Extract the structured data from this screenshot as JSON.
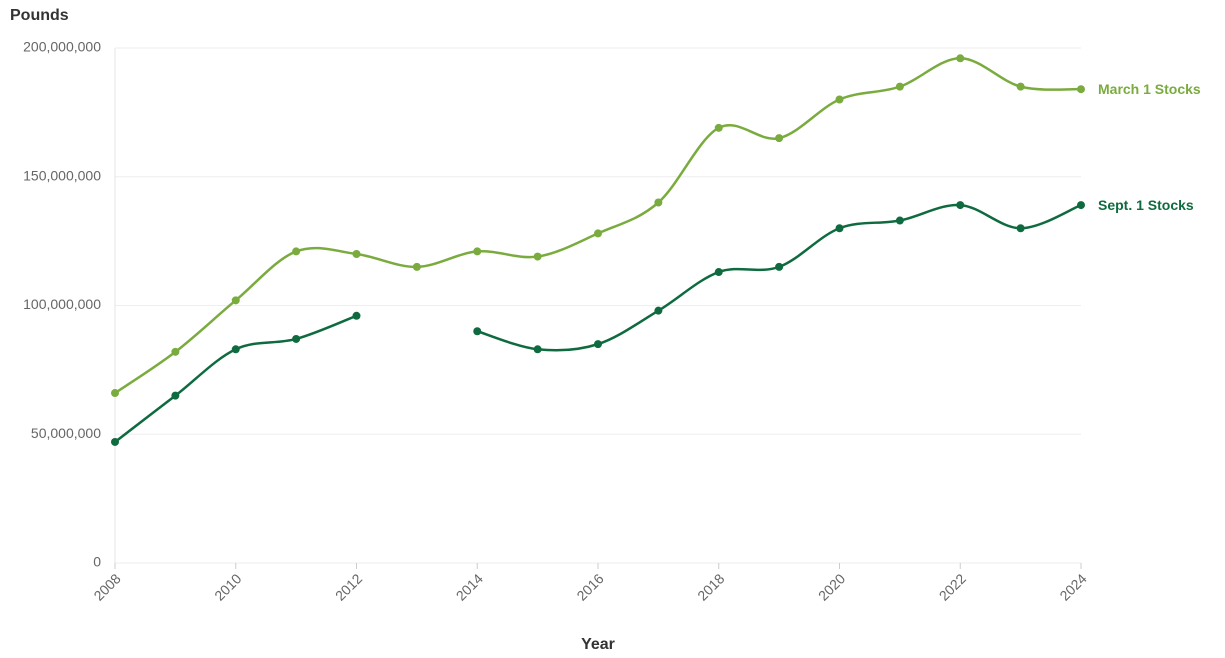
{
  "chart_data": {
    "type": "line",
    "y_label": "Pounds",
    "x_label": "Year",
    "x": [
      2008,
      2009,
      2010,
      2011,
      2012,
      2013,
      2014,
      2015,
      2016,
      2017,
      2018,
      2019,
      2020,
      2021,
      2022,
      2023,
      2024
    ],
    "series": [
      {
        "name": "March 1 Stocks",
        "color": "#7aab3e",
        "values": [
          66000000,
          82000000,
          102000000,
          121000000,
          120000000,
          115000000,
          121000000,
          119000000,
          128000000,
          140000000,
          169000000,
          165000000,
          180000000,
          185000000,
          196000000,
          185000000,
          184000000
        ]
      },
      {
        "name": "Sept. 1 Stocks",
        "color": "#0f6b3f",
        "values": [
          47000000,
          65000000,
          83000000,
          87000000,
          96000000,
          null,
          90000000,
          83000000,
          85000000,
          98000000,
          113000000,
          115000000,
          130000000,
          133000000,
          139000000,
          130000000,
          139000000
        ]
      }
    ],
    "xlim": [
      2008,
      2024
    ],
    "xticks": [
      2008,
      2010,
      2012,
      2014,
      2016,
      2018,
      2020,
      2022,
      2024
    ],
    "ylim": [
      0,
      200000000
    ],
    "yticks": [
      0,
      {
        "value": 50000000,
        "label": "50,000,000"
      },
      {
        "value": 100000000,
        "label": "100,000,000"
      },
      {
        "value": 150000000,
        "label": "150,000,000"
      },
      {
        "value": 200000000,
        "label": "200,000,000"
      }
    ],
    "grid": true
  }
}
